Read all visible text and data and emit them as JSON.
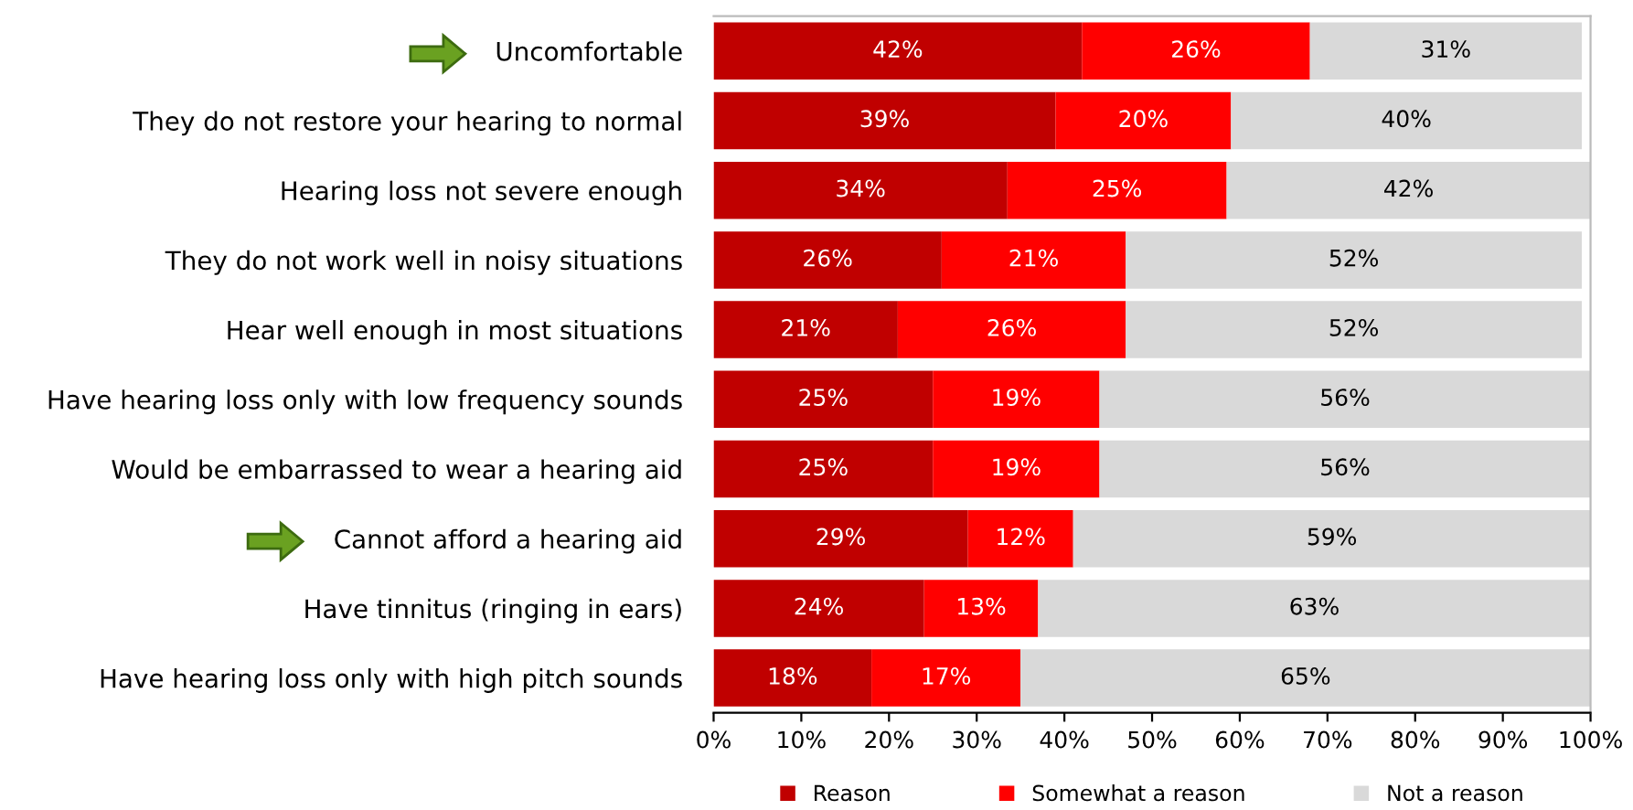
{
  "chart_data": {
    "type": "bar",
    "orientation": "horizontal",
    "stacked": true,
    "grid": false,
    "legend": "bottom",
    "categories": [
      "Uncomfortable",
      "They do not restore your hearing to normal",
      "Hearing loss not severe enough",
      "They do not work well in noisy situations",
      "Hear well enough in most situations",
      "Have hearing loss only with low frequency sounds",
      "Would be embarrassed to wear a hearing aid",
      "Cannot afford a hearing aid",
      "Have tinnitus (ringing in ears)",
      "Have hearing loss only with high pitch sounds"
    ],
    "series": [
      {
        "name": "Reason",
        "color": "#c00000",
        "values": [
          42,
          39,
          33.5,
          26,
          21,
          25,
          25,
          29,
          24,
          18
        ],
        "value_labels": [
          "42%",
          "39%",
          "34%",
          "26%",
          "21%",
          "25%",
          "25%",
          "29%",
          "24%",
          "18%"
        ]
      },
      {
        "name": "Somewhat a reason",
        "color": "#ff0000",
        "values": [
          26,
          20,
          25,
          21,
          26,
          19,
          19,
          12,
          13,
          17
        ],
        "value_labels": [
          "26%",
          "20%",
          "25%",
          "21%",
          "26%",
          "19%",
          "19%",
          "12%",
          "13%",
          "17%"
        ]
      },
      {
        "name": "Not a reason",
        "color": "#d9d9d9",
        "values": [
          31,
          40,
          41.5,
          52,
          52,
          56,
          56,
          59,
          63,
          65
        ],
        "value_labels": [
          "31%",
          "40%",
          "42%",
          "52%",
          "52%",
          "56%",
          "56%",
          "59%",
          "63%",
          "65%"
        ]
      }
    ],
    "xlim": [
      0,
      100
    ],
    "xticks": [
      {
        "value": 0,
        "label": "0%"
      },
      {
        "value": 10,
        "label": "10%"
      },
      {
        "value": 20,
        "label": "20%"
      },
      {
        "value": 30,
        "label": "30%"
      },
      {
        "value": 40,
        "label": "40%"
      },
      {
        "value": 50,
        "label": "50%"
      },
      {
        "value": 60,
        "label": "60%"
      },
      {
        "value": 70,
        "label": "70%"
      },
      {
        "value": 80,
        "label": "80%"
      },
      {
        "value": 90,
        "label": "90%"
      },
      {
        "value": 100,
        "label": "100%"
      }
    ]
  }
}
